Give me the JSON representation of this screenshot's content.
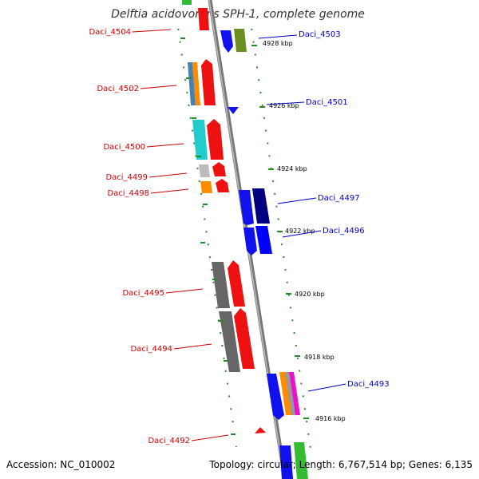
{
  "title": "Delftia acidovorans SPH-1, complete genome",
  "accession": "Accession: NC_010002",
  "topology": "Topology: circular; Length: 6,767,514 bp; Genes: 6,135",
  "colors": {
    "left_label": "#cc0000",
    "right_label": "#0000cc",
    "backbone": "#888888",
    "tick": "#228b22"
  },
  "genes_left": [
    {
      "id": "Daci_4504"
    },
    {
      "id": "Daci_4502"
    },
    {
      "id": "Daci_4500"
    },
    {
      "id": "Daci_4499"
    },
    {
      "id": "Daci_4498"
    },
    {
      "id": "Daci_4495"
    },
    {
      "id": "Daci_4494"
    },
    {
      "id": "Daci_4492"
    }
  ],
  "genes_right": [
    {
      "id": "Daci_4503"
    },
    {
      "id": "Daci_4501"
    },
    {
      "id": "Daci_4497"
    },
    {
      "id": "Daci_4496"
    },
    {
      "id": "Daci_4493"
    }
  ],
  "scale_labels": [
    "4928 kbp",
    "4926 kbp",
    "4924 kbp",
    "4922 kbp",
    "4920 kbp",
    "4918 kbp",
    "4916 kbp"
  ]
}
